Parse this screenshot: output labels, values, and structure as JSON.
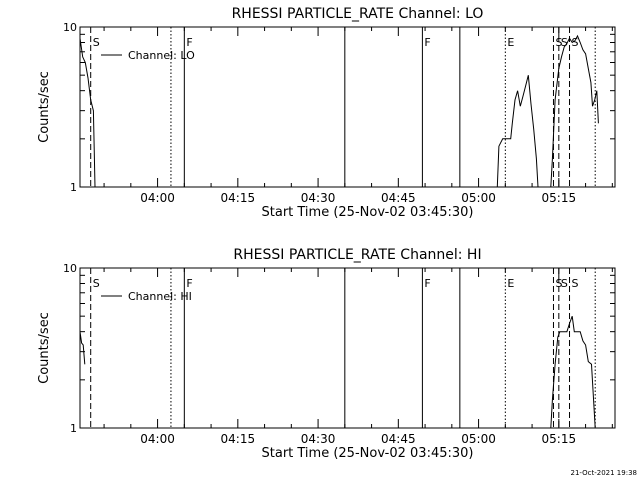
{
  "footer": {
    "timestamp": "21-Oct-2021 19:38"
  },
  "chart_data": [
    {
      "type": "line",
      "title": "RHESSI PARTICLE_RATE Channel: LO",
      "xlabel": "Start Time (25-Nov-02 03:45:30)",
      "ylabel": "Counts/sec",
      "yscale": "log",
      "xlim_minutes": [
        0,
        100
      ],
      "ylim": [
        1,
        10
      ],
      "x_tick_labels": [
        {
          "label": "04:00",
          "min": 14.5
        },
        {
          "label": "04:15",
          "min": 29.5
        },
        {
          "label": "04:30",
          "min": 44.5
        },
        {
          "label": "04:45",
          "min": 59.5
        },
        {
          "label": "05:00",
          "min": 74.5
        },
        {
          "label": "05:15",
          "min": 89.5
        }
      ],
      "y_tick_labels": [
        {
          "label": "1",
          "v": 1
        },
        {
          "label": "10",
          "v": 10
        }
      ],
      "legend": {
        "label": "Channel: LO",
        "placement": "top-left"
      },
      "series": [
        {
          "name": "Channel: LO",
          "segments": [
            [
              [
                0,
                8.5
              ],
              [
                0.5,
                6.5
              ],
              [
                1,
                6.0
              ],
              [
                1.5,
                4.8
              ],
              [
                2,
                3.5
              ],
              [
                2.5,
                3.0
              ],
              [
                2.8,
                1.0
              ]
            ],
            [
              [
                78,
                1.0
              ],
              [
                78.3,
                1.8
              ],
              [
                79,
                2.0
              ],
              [
                80.5,
                2.0
              ],
              [
                80.8,
                2.5
              ],
              [
                81.3,
                3.5
              ],
              [
                81.8,
                4.0
              ],
              [
                82.3,
                3.2
              ],
              [
                82.8,
                3.7
              ],
              [
                83.3,
                4.3
              ],
              [
                83.8,
                5.0
              ],
              [
                84.3,
                3.3
              ],
              [
                84.8,
                2.3
              ],
              [
                85.3,
                1.5
              ],
              [
                85.6,
                1.0
              ]
            ],
            [
              [
                88,
                1.0
              ],
              [
                88.3,
                1.5
              ],
              [
                88.8,
                3.5
              ],
              [
                89.5,
                5.5
              ],
              [
                90,
                6.5
              ],
              [
                90.5,
                7.5
              ],
              [
                91,
                7.9
              ],
              [
                91.5,
                8.5
              ],
              [
                92,
                8.0
              ],
              [
                92.5,
                8.2
              ],
              [
                93,
                8.8
              ],
              [
                93.5,
                8.0
              ],
              [
                94,
                7.2
              ],
              [
                94.5,
                6.8
              ],
              [
                95,
                5.5
              ],
              [
                95.5,
                4.5
              ],
              [
                95.8,
                3.2
              ],
              [
                96.2,
                3.5
              ],
              [
                96.6,
                4.0
              ],
              [
                96.9,
                2.5
              ]
            ]
          ]
        }
      ],
      "vlines": [
        {
          "min": 2.0,
          "style": "dashed",
          "label": "S"
        },
        {
          "min": 17.0,
          "style": "dotted",
          "label": ""
        },
        {
          "min": 19.5,
          "style": "solid",
          "label": "F"
        },
        {
          "min": 49.5,
          "style": "solid",
          "label": ""
        },
        {
          "min": 64.0,
          "style": "solid",
          "label": "F"
        },
        {
          "min": 71.0,
          "style": "solid",
          "label": ""
        },
        {
          "min": 79.5,
          "style": "dotted",
          "label": "E"
        },
        {
          "min": 88.5,
          "style": "dashed",
          "label": "S"
        },
        {
          "min": 89.5,
          "style": "dashed",
          "label": "S"
        },
        {
          "min": 91.5,
          "style": "dashed",
          "label": "S"
        },
        {
          "min": 96.3,
          "style": "dotted",
          "label": ""
        }
      ]
    },
    {
      "type": "line",
      "title": "RHESSI PARTICLE_RATE Channel: HI",
      "xlabel": "Start Time (25-Nov-02 03:45:30)",
      "ylabel": "Counts/sec",
      "yscale": "log",
      "xlim_minutes": [
        0,
        100
      ],
      "ylim": [
        1,
        10
      ],
      "x_tick_labels": [
        {
          "label": "04:00",
          "min": 14.5
        },
        {
          "label": "04:15",
          "min": 29.5
        },
        {
          "label": "04:30",
          "min": 44.5
        },
        {
          "label": "04:45",
          "min": 59.5
        },
        {
          "label": "05:00",
          "min": 74.5
        },
        {
          "label": "05:15",
          "min": 89.5
        }
      ],
      "y_tick_labels": [
        {
          "label": "1",
          "v": 1
        },
        {
          "label": "10",
          "v": 10
        }
      ],
      "legend": {
        "label": "Channel: HI",
        "placement": "top-left"
      },
      "series": [
        {
          "name": "Channel: HI",
          "segments": [
            [
              [
                0,
                4.0
              ],
              [
                0.3,
                3.4
              ],
              [
                0.6,
                3.3
              ],
              [
                0.9,
                2.5
              ]
            ],
            [
              [
                88,
                1.0
              ],
              [
                88.3,
                1.5
              ],
              [
                88.8,
                2.5
              ],
              [
                89.3,
                3.7
              ],
              [
                89.7,
                4.0
              ],
              [
                91,
                4.0
              ],
              [
                91.5,
                4.5
              ],
              [
                92,
                5.0
              ],
              [
                92.4,
                4.0
              ],
              [
                93.5,
                4.0
              ],
              [
                94,
                3.5
              ],
              [
                94.5,
                3.3
              ],
              [
                95,
                2.6
              ],
              [
                95.6,
                2.5
              ],
              [
                96.3,
                1.0
              ]
            ]
          ]
        }
      ],
      "vlines": [
        {
          "min": 2.0,
          "style": "dashed",
          "label": "S"
        },
        {
          "min": 17.0,
          "style": "dotted",
          "label": ""
        },
        {
          "min": 19.5,
          "style": "solid",
          "label": "F"
        },
        {
          "min": 49.5,
          "style": "solid",
          "label": ""
        },
        {
          "min": 64.0,
          "style": "solid",
          "label": "F"
        },
        {
          "min": 71.0,
          "style": "solid",
          "label": ""
        },
        {
          "min": 79.5,
          "style": "dotted",
          "label": "E"
        },
        {
          "min": 88.5,
          "style": "dashed",
          "label": "S"
        },
        {
          "min": 89.5,
          "style": "dashed",
          "label": "S"
        },
        {
          "min": 91.5,
          "style": "dashed",
          "label": "S"
        },
        {
          "min": 96.3,
          "style": "dotted",
          "label": ""
        }
      ]
    }
  ]
}
